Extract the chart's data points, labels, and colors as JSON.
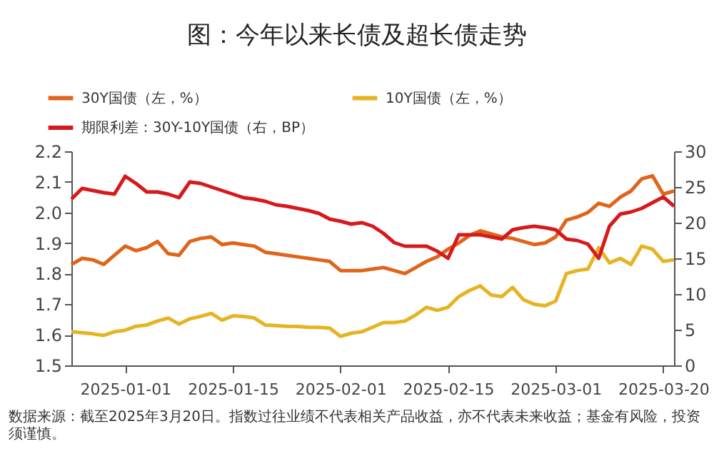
{
  "chart_data": {
    "type": "line",
    "title": "图：今年以来长债及超长债走势",
    "annotations": [
      "数据来源：截至2025年3月20日。指数过往业绩不代表相关产品收益，亦不代表未来收益；基金有风险，投资须谨慎。"
    ],
    "categories": [
      null,
      null,
      null,
      null,
      null,
      "2025-01-01",
      null,
      null,
      null,
      null,
      null,
      null,
      null,
      null,
      null,
      "2025-01-15",
      null,
      null,
      null,
      null,
      null,
      null,
      null,
      null,
      null,
      "2025-02-01",
      null,
      null,
      null,
      null,
      null,
      null,
      null,
      null,
      null,
      "2025-02-15",
      null,
      null,
      null,
      null,
      null,
      null,
      null,
      null,
      null,
      "2025-03-01",
      null,
      null,
      null,
      null,
      null,
      null,
      null,
      null,
      null,
      "2025-03-20",
      null
    ],
    "series": [
      {
        "name": "30Y国债（左，%）",
        "color": "#e0641a",
        "values": [
          1.83,
          1.85,
          1.845,
          1.83,
          1.86,
          1.89,
          1.875,
          1.885,
          1.905,
          1.865,
          1.86,
          1.905,
          1.915,
          1.92,
          1.895,
          1.9,
          1.895,
          1.89,
          1.87,
          1.865,
          1.86,
          1.855,
          1.85,
          1.845,
          1.84,
          1.81,
          1.81,
          1.81,
          1.815,
          1.82,
          1.81,
          1.8,
          1.82,
          1.84,
          1.855,
          1.88,
          1.9,
          1.925,
          1.94,
          1.93,
          1.92,
          1.915,
          1.905,
          1.895,
          1.9,
          1.92,
          1.975,
          1.985,
          2.0,
          2.03,
          2.02,
          2.05,
          2.07,
          2.11,
          2.12,
          2.06,
          2.07
        ]
      },
      {
        "name": "10Y国债（左，%）",
        "color": "#e6b422",
        "values": [
          1.61,
          1.607,
          1.603,
          1.598,
          1.61,
          1.615,
          1.628,
          1.632,
          1.645,
          1.655,
          1.635,
          1.652,
          1.66,
          1.67,
          1.648,
          1.662,
          1.66,
          1.655,
          1.632,
          1.63,
          1.628,
          1.627,
          1.625,
          1.624,
          1.622,
          1.595,
          1.605,
          1.61,
          1.625,
          1.64,
          1.64,
          1.645,
          1.665,
          1.69,
          1.68,
          1.69,
          1.725,
          1.745,
          1.76,
          1.73,
          1.725,
          1.755,
          1.715,
          1.7,
          1.695,
          1.71,
          1.8,
          1.81,
          1.815,
          1.885,
          1.835,
          1.85,
          1.83,
          1.89,
          1.88,
          1.84,
          1.845
        ]
      },
      {
        "name": "期限利差：30Y-10Y国债（右，BP）",
        "color": "#d7191c",
        "axis": "y2",
        "values": [
          23.3,
          24.8,
          24.5,
          24.2,
          24.0,
          26.5,
          25.5,
          24.3,
          24.3,
          24.0,
          23.5,
          25.7,
          25.5,
          25.0,
          24.5,
          24.0,
          23.5,
          23.3,
          23.0,
          22.5,
          22.3,
          22.0,
          21.7,
          21.3,
          20.5,
          20.2,
          19.8,
          20.0,
          19.5,
          18.5,
          17.2,
          16.7,
          16.7,
          16.7,
          16.0,
          15.0,
          18.3,
          18.3,
          18.3,
          18.0,
          17.7,
          19.0,
          19.3,
          19.5,
          19.3,
          19.0,
          17.7,
          17.5,
          17.0,
          15.0,
          19.5,
          21.2,
          21.5,
          22.0,
          22.8,
          23.6,
          22.3
        ]
      }
    ],
    "ylim": [
      1.5,
      2.2
    ],
    "yticks": [
      1.5,
      1.6,
      1.7,
      1.8,
      1.9,
      {
        "value": 2,
        "label": "2.0"
      },
      2.1,
      2.2
    ],
    "y2lim": [
      0,
      30
    ],
    "y2ticks": [
      0,
      5,
      10,
      15,
      20,
      25,
      30
    ],
    "legend": "top left",
    "marker": "none",
    "line_style": "solid"
  }
}
